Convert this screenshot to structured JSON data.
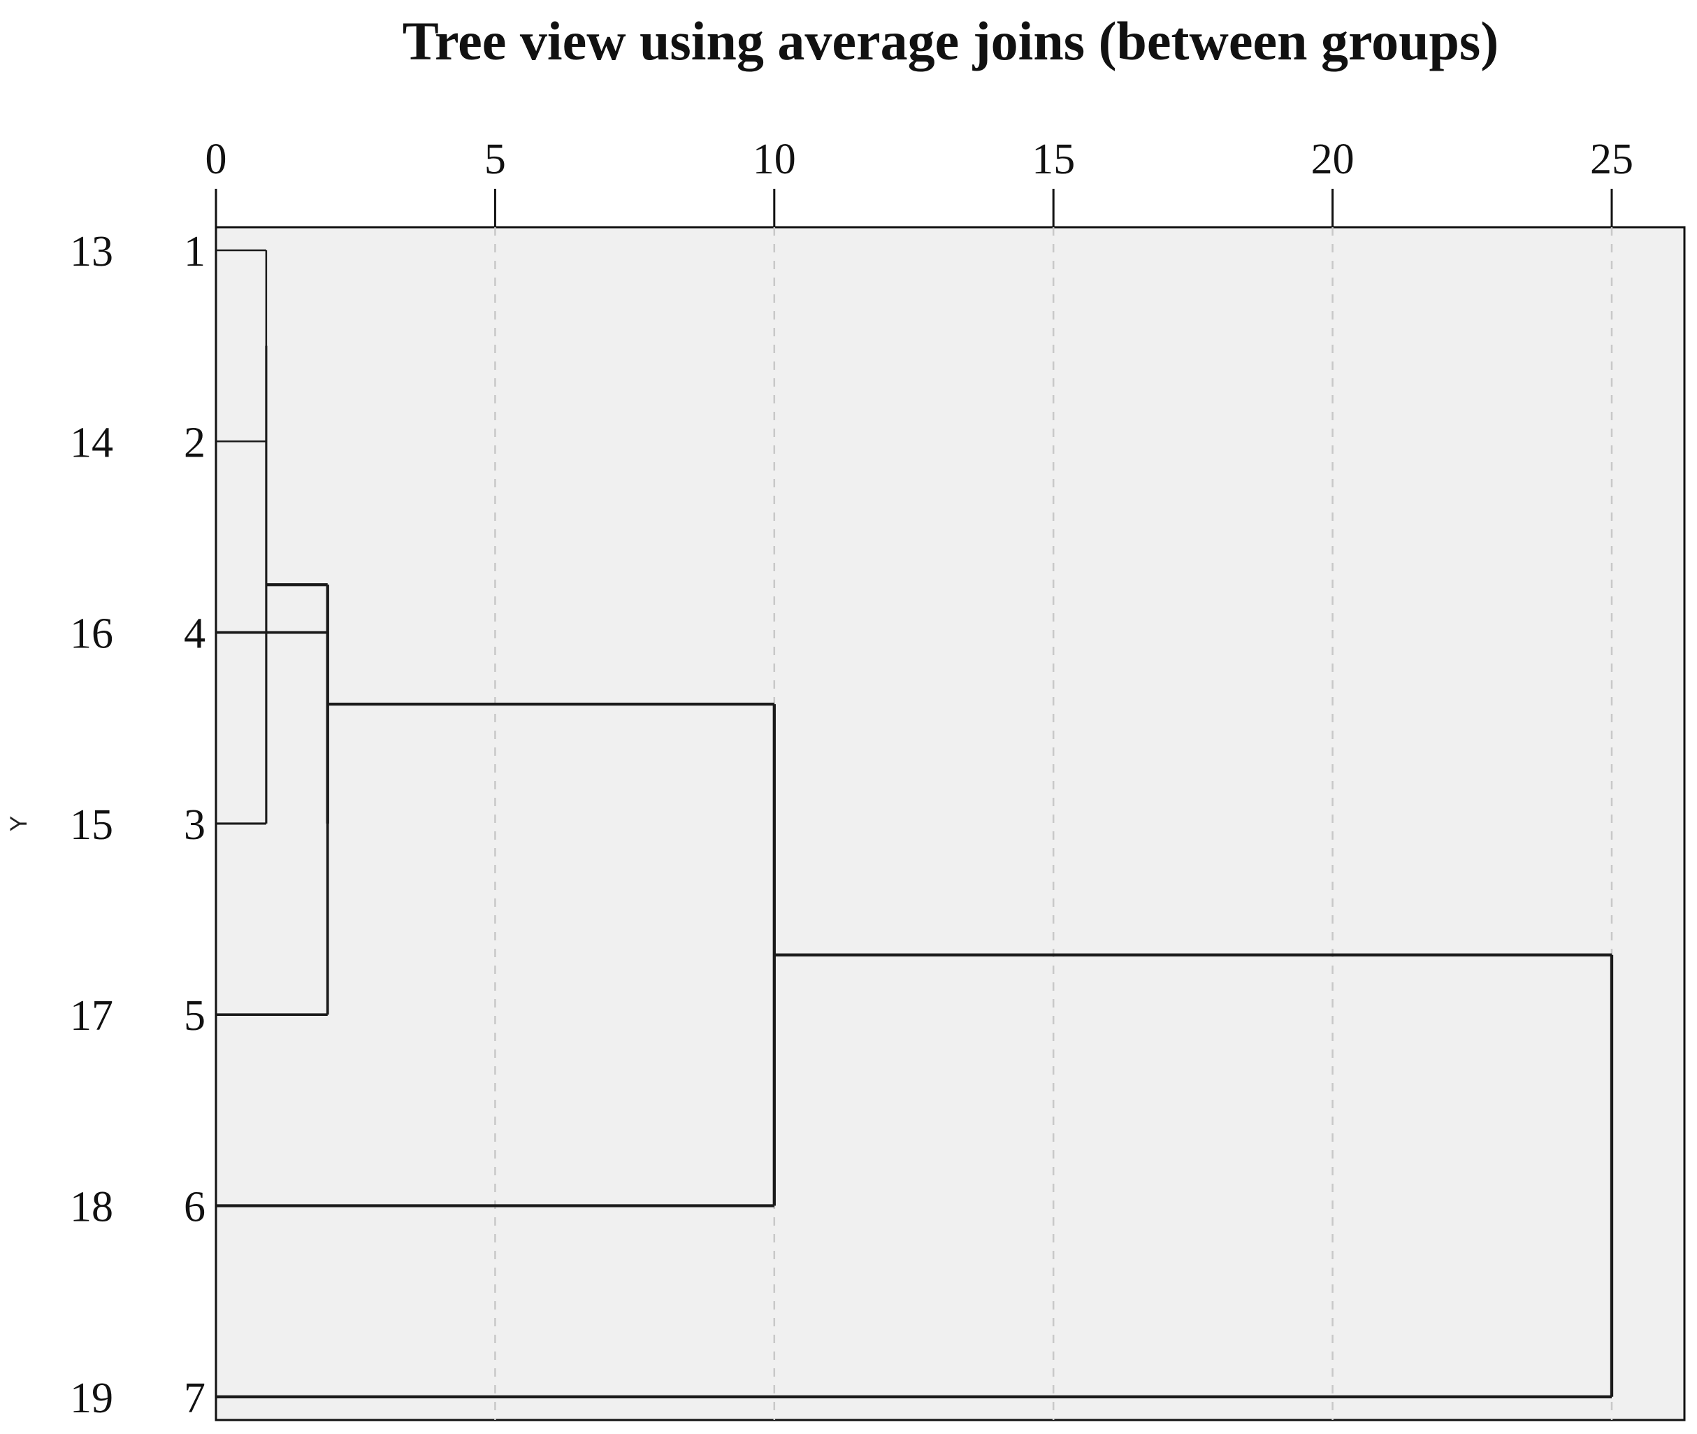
{
  "chart_data": {
    "type": "dendrogram",
    "title": "Tree view using average joins (between groups)",
    "ylabel": "Y",
    "xlim": [
      0,
      26.4
    ],
    "x_ticks": [
      0,
      5,
      10,
      15,
      20,
      25
    ],
    "grid": true,
    "leaves": [
      {
        "case": "13",
        "label": "1"
      },
      {
        "case": "14",
        "label": "2"
      },
      {
        "case": "16",
        "label": "4"
      },
      {
        "case": "15",
        "label": "3"
      },
      {
        "case": "17",
        "label": "5"
      },
      {
        "case": "18",
        "label": "6"
      },
      {
        "case": "19",
        "label": "7"
      }
    ],
    "merges": [
      {
        "a": "leaf:0",
        "b": "leaf:1",
        "distance": 0.9
      },
      {
        "a": "merge:0",
        "b": "leaf:3",
        "distance": 0.9
      },
      {
        "a": "leaf:2",
        "b": "leaf:4",
        "distance": 2.0
      },
      {
        "a": "merge:1",
        "b": "merge:2",
        "distance": 2.0
      },
      {
        "a": "merge:3",
        "b": "leaf:5",
        "distance": 10.0
      },
      {
        "a": "merge:4",
        "b": "leaf:6",
        "distance": 25.0
      }
    ]
  },
  "colors": {
    "plot_background": "#f0f0f0",
    "grid": "#c8c8c8",
    "line": "#1a1a1a",
    "axis": "#111111"
  }
}
